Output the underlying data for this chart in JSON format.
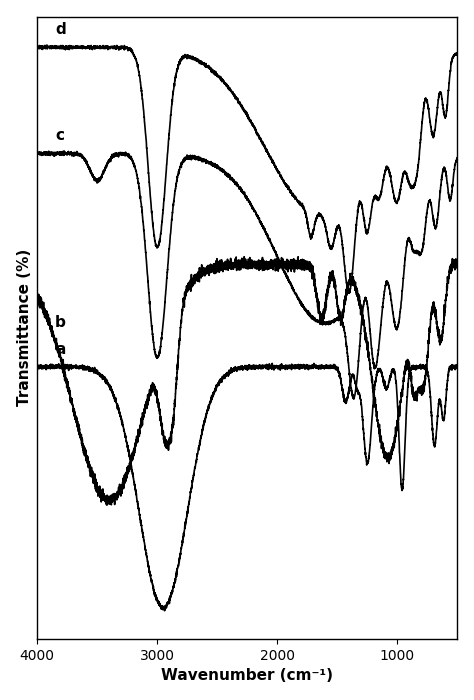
{
  "xlabel": "Wavenumber (cm⁻¹)",
  "ylabel": "Transmittance (%)",
  "xlim": [
    4000,
    500
  ],
  "xticks": [
    4000,
    3000,
    2000,
    1000
  ],
  "background_color": "#ffffff",
  "line_color": "#000000",
  "line_width": 1.2,
  "labels": [
    "a",
    "b",
    "c",
    "d"
  ],
  "offsets": [
    0,
    32,
    64,
    96
  ],
  "figsize": [
    4.74,
    7.0
  ],
  "dpi": 100
}
